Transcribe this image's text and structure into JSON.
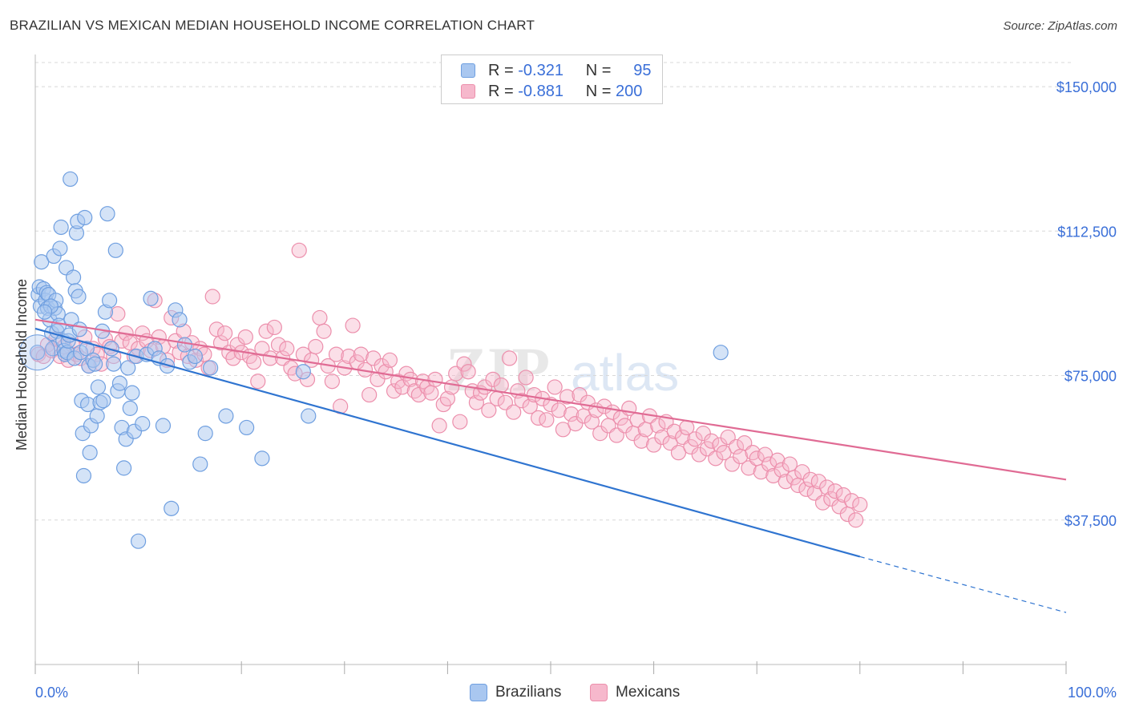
{
  "header": {
    "title": "BRAZILIAN VS MEXICAN MEDIAN HOUSEHOLD INCOME CORRELATION CHART",
    "source": "Source: ZipAtlas.com"
  },
  "legend_top": {
    "rows": [
      {
        "r_label": "R =",
        "r_value": "-0.321",
        "n_label": "N =",
        "n_value": "95"
      },
      {
        "r_label": "R =",
        "r_value": "-0.881",
        "n_label": "N =",
        "n_value": "200"
      }
    ]
  },
  "legend_bottom": {
    "items": [
      {
        "label": "Brazilians"
      },
      {
        "label": "Mexicans"
      }
    ]
  },
  "watermark": {
    "text1": "ZIP",
    "text2": "atlas"
  },
  "colors": {
    "blue_fill": "#a9c7f0",
    "blue_stroke": "#6f9fe0",
    "blue_line": "#2f74d0",
    "pink_fill": "#f6b8cc",
    "pink_stroke": "#ec8fac",
    "pink_line": "#e06b94",
    "axis_text": "#3a6fd8",
    "grid": "#d8d8d8"
  },
  "chart_data": {
    "type": "scatter",
    "title": "BRAZILIAN VS MEXICAN MEDIAN HOUSEHOLD INCOME CORRELATION CHART",
    "xlabel": "",
    "ylabel": "Median Household Income",
    "xlim": [
      0,
      100
    ],
    "ylim": [
      0,
      160000
    ],
    "x_tick_labels": [
      "0.0%",
      "100.0%"
    ],
    "y_ticks": [
      37500,
      75000,
      112500,
      150000
    ],
    "y_tick_labels": [
      "$37,500",
      "$75,000",
      "$112,500",
      "$150,000"
    ],
    "grid": "horizontal dashed",
    "legend_position": "top-center",
    "series": [
      {
        "name": "Brazilians",
        "r": -0.321,
        "n": 95,
        "trend": {
          "x0": 0,
          "y0": 87200,
          "x1": 80,
          "y1": 28000,
          "dashed_to_x": 100,
          "dashed_to_y": 13500
        },
        "points": [
          [
            0.2,
            81000
          ],
          [
            0.3,
            96000
          ],
          [
            0.4,
            98000
          ],
          [
            0.5,
            93000
          ],
          [
            0.6,
            104500
          ],
          [
            0.8,
            97500
          ],
          [
            1.0,
            94500
          ],
          [
            1.1,
            96500
          ],
          [
            1.2,
            92500
          ],
          [
            1.3,
            96000
          ],
          [
            1.4,
            89500
          ],
          [
            1.6,
            86000
          ],
          [
            1.7,
            82000
          ],
          [
            1.8,
            106000
          ],
          [
            1.9,
            92500
          ],
          [
            2.0,
            94500
          ],
          [
            2.1,
            86500
          ],
          [
            2.2,
            91000
          ],
          [
            2.3,
            88000
          ],
          [
            2.5,
            113500
          ],
          [
            2.7,
            84000
          ],
          [
            2.8,
            81500
          ],
          [
            2.9,
            80500
          ],
          [
            3.0,
            103000
          ],
          [
            3.1,
            81000
          ],
          [
            3.2,
            84000
          ],
          [
            3.3,
            85500
          ],
          [
            3.5,
            89500
          ],
          [
            3.7,
            100500
          ],
          [
            3.8,
            79500
          ],
          [
            3.9,
            97000
          ],
          [
            4.0,
            112000
          ],
          [
            4.1,
            115000
          ],
          [
            4.2,
            95500
          ],
          [
            4.3,
            87000
          ],
          [
            4.4,
            81000
          ],
          [
            4.5,
            68500
          ],
          [
            4.6,
            60000
          ],
          [
            4.7,
            49000
          ],
          [
            4.8,
            116000
          ],
          [
            5.0,
            82000
          ],
          [
            5.1,
            67500
          ],
          [
            5.2,
            77500
          ],
          [
            5.3,
            55000
          ],
          [
            5.4,
            62000
          ],
          [
            5.6,
            79000
          ],
          [
            5.8,
            78000
          ],
          [
            6.0,
            64500
          ],
          [
            6.1,
            72000
          ],
          [
            6.3,
            68000
          ],
          [
            6.5,
            86500
          ],
          [
            6.6,
            68500
          ],
          [
            6.8,
            91500
          ],
          [
            7.0,
            117000
          ],
          [
            7.2,
            94500
          ],
          [
            7.4,
            82000
          ],
          [
            7.6,
            78000
          ],
          [
            7.8,
            107500
          ],
          [
            8.0,
            71000
          ],
          [
            8.2,
            73000
          ],
          [
            8.4,
            61500
          ],
          [
            8.6,
            51000
          ],
          [
            8.8,
            58500
          ],
          [
            9.0,
            77000
          ],
          [
            9.2,
            66500
          ],
          [
            9.4,
            70500
          ],
          [
            9.6,
            60500
          ],
          [
            9.8,
            80000
          ],
          [
            10.0,
            32000
          ],
          [
            10.4,
            62500
          ],
          [
            10.8,
            80500
          ],
          [
            11.2,
            95000
          ],
          [
            11.6,
            82000
          ],
          [
            12.0,
            79500
          ],
          [
            12.4,
            62000
          ],
          [
            12.8,
            77500
          ],
          [
            13.2,
            40500
          ],
          [
            13.6,
            92000
          ],
          [
            14.0,
            89500
          ],
          [
            14.5,
            83000
          ],
          [
            15.0,
            78500
          ],
          [
            15.5,
            80000
          ],
          [
            16.0,
            52000
          ],
          [
            16.5,
            60000
          ],
          [
            17.0,
            77000
          ],
          [
            18.5,
            64500
          ],
          [
            20.5,
            61500
          ],
          [
            22.0,
            53500
          ],
          [
            26.0,
            76000
          ],
          [
            26.5,
            64500
          ],
          [
            3.4,
            126000
          ],
          [
            2.4,
            108000
          ],
          [
            1.5,
            93000
          ],
          [
            0.9,
            91500
          ],
          [
            66.5,
            81000
          ]
        ]
      },
      {
        "name": "Mexicans",
        "r": -0.881,
        "n": 200,
        "trend": {
          "x0": 0,
          "y0": 89500,
          "x1": 100,
          "y1": 48000
        },
        "points": [
          [
            0.3,
            80500
          ],
          [
            0.8,
            80000
          ],
          [
            1.2,
            83000
          ],
          [
            1.6,
            81500
          ],
          [
            2.0,
            84500
          ],
          [
            2.4,
            80000
          ],
          [
            2.8,
            82500
          ],
          [
            3.2,
            79000
          ],
          [
            3.6,
            83000
          ],
          [
            4.0,
            80500
          ],
          [
            4.4,
            79500
          ],
          [
            4.8,
            85000
          ],
          [
            5.2,
            77500
          ],
          [
            5.6,
            82000
          ],
          [
            6.0,
            80500
          ],
          [
            6.4,
            78000
          ],
          [
            6.8,
            84500
          ],
          [
            7.2,
            82500
          ],
          [
            7.6,
            80000
          ],
          [
            8.0,
            91000
          ],
          [
            8.4,
            84000
          ],
          [
            8.8,
            86000
          ],
          [
            9.2,
            83500
          ],
          [
            9.6,
            80000
          ],
          [
            10.0,
            82000
          ],
          [
            10.4,
            86000
          ],
          [
            10.8,
            84000
          ],
          [
            11.2,
            81500
          ],
          [
            11.6,
            94500
          ],
          [
            12.0,
            85000
          ],
          [
            12.4,
            82500
          ],
          [
            12.8,
            79000
          ],
          [
            13.2,
            90000
          ],
          [
            13.6,
            84000
          ],
          [
            14.0,
            81000
          ],
          [
            14.4,
            86500
          ],
          [
            14.8,
            80000
          ],
          [
            15.2,
            83500
          ],
          [
            15.6,
            79000
          ],
          [
            16.0,
            82000
          ],
          [
            16.4,
            80500
          ],
          [
            16.8,
            77000
          ],
          [
            17.2,
            95500
          ],
          [
            17.6,
            87000
          ],
          [
            18.0,
            83500
          ],
          [
            18.4,
            86000
          ],
          [
            18.8,
            81000
          ],
          [
            19.2,
            79500
          ],
          [
            19.6,
            83000
          ],
          [
            20.0,
            81000
          ],
          [
            20.4,
            85000
          ],
          [
            20.8,
            80000
          ],
          [
            21.2,
            78500
          ],
          [
            21.6,
            73500
          ],
          [
            22.0,
            82000
          ],
          [
            22.4,
            86500
          ],
          [
            22.8,
            79500
          ],
          [
            23.2,
            87500
          ],
          [
            23.6,
            83000
          ],
          [
            24.0,
            79500
          ],
          [
            24.4,
            82000
          ],
          [
            24.8,
            77000
          ],
          [
            25.2,
            75500
          ],
          [
            25.6,
            107500
          ],
          [
            26.0,
            80500
          ],
          [
            26.4,
            74000
          ],
          [
            26.8,
            79000
          ],
          [
            27.2,
            82500
          ],
          [
            27.6,
            90000
          ],
          [
            28.0,
            86500
          ],
          [
            28.4,
            77500
          ],
          [
            28.8,
            73500
          ],
          [
            29.2,
            80500
          ],
          [
            29.6,
            67000
          ],
          [
            30.0,
            77000
          ],
          [
            30.4,
            80000
          ],
          [
            30.8,
            88000
          ],
          [
            31.2,
            78500
          ],
          [
            31.6,
            80500
          ],
          [
            32.0,
            76500
          ],
          [
            32.4,
            70000
          ],
          [
            32.8,
            79500
          ],
          [
            33.2,
            74000
          ],
          [
            33.6,
            77500
          ],
          [
            34.0,
            76000
          ],
          [
            34.4,
            79000
          ],
          [
            34.8,
            71000
          ],
          [
            35.2,
            73500
          ],
          [
            35.6,
            72000
          ],
          [
            36.0,
            75500
          ],
          [
            36.4,
            74000
          ],
          [
            36.8,
            71000
          ],
          [
            37.2,
            70000
          ],
          [
            37.6,
            73500
          ],
          [
            38.0,
            72000
          ],
          [
            38.4,
            70500
          ],
          [
            38.8,
            74000
          ],
          [
            39.2,
            62000
          ],
          [
            39.6,
            67500
          ],
          [
            40.0,
            69000
          ],
          [
            40.4,
            72000
          ],
          [
            40.8,
            75500
          ],
          [
            41.2,
            63000
          ],
          [
            41.6,
            78000
          ],
          [
            42.0,
            76000
          ],
          [
            42.4,
            71000
          ],
          [
            42.8,
            68000
          ],
          [
            43.2,
            70500
          ],
          [
            43.6,
            72000
          ],
          [
            44.0,
            66000
          ],
          [
            44.4,
            74000
          ],
          [
            44.8,
            69000
          ],
          [
            45.2,
            72500
          ],
          [
            45.6,
            68000
          ],
          [
            46.0,
            79500
          ],
          [
            46.4,
            65500
          ],
          [
            46.8,
            71000
          ],
          [
            47.2,
            68500
          ],
          [
            47.6,
            74500
          ],
          [
            48.0,
            67000
          ],
          [
            48.4,
            70000
          ],
          [
            48.8,
            64000
          ],
          [
            49.2,
            69000
          ],
          [
            49.6,
            63500
          ],
          [
            50.0,
            67500
          ],
          [
            50.4,
            72000
          ],
          [
            50.8,
            66000
          ],
          [
            51.2,
            61000
          ],
          [
            51.6,
            69500
          ],
          [
            52.0,
            65000
          ],
          [
            52.4,
            62500
          ],
          [
            52.8,
            70000
          ],
          [
            53.2,
            64500
          ],
          [
            53.6,
            68000
          ],
          [
            54.0,
            63000
          ],
          [
            54.4,
            66000
          ],
          [
            54.8,
            60000
          ],
          [
            55.2,
            67000
          ],
          [
            55.6,
            62000
          ],
          [
            56.0,
            65500
          ],
          [
            56.4,
            59500
          ],
          [
            56.8,
            64000
          ],
          [
            57.2,
            62000
          ],
          [
            57.6,
            66500
          ],
          [
            58.0,
            60000
          ],
          [
            58.4,
            63500
          ],
          [
            58.8,
            58000
          ],
          [
            59.2,
            61000
          ],
          [
            59.6,
            64500
          ],
          [
            60.0,
            57000
          ],
          [
            60.4,
            62000
          ],
          [
            60.8,
            59000
          ],
          [
            61.2,
            63000
          ],
          [
            61.6,
            57500
          ],
          [
            62.0,
            60500
          ],
          [
            62.4,
            55000
          ],
          [
            62.8,
            59000
          ],
          [
            63.2,
            61500
          ],
          [
            63.6,
            56500
          ],
          [
            64.0,
            58500
          ],
          [
            64.4,
            54500
          ],
          [
            64.8,
            60000
          ],
          [
            65.2,
            56000
          ],
          [
            65.6,
            58000
          ],
          [
            66.0,
            53500
          ],
          [
            66.4,
            57000
          ],
          [
            66.8,
            55000
          ],
          [
            67.2,
            59000
          ],
          [
            67.6,
            52000
          ],
          [
            68.0,
            56500
          ],
          [
            68.4,
            54000
          ],
          [
            68.8,
            57500
          ],
          [
            69.2,
            51000
          ],
          [
            69.6,
            55000
          ],
          [
            70.0,
            53500
          ],
          [
            70.4,
            50000
          ],
          [
            70.8,
            54500
          ],
          [
            71.2,
            52000
          ],
          [
            71.6,
            49000
          ],
          [
            72.0,
            53000
          ],
          [
            72.4,
            50500
          ],
          [
            72.8,
            47500
          ],
          [
            73.2,
            52000
          ],
          [
            73.6,
            48500
          ],
          [
            74.0,
            46500
          ],
          [
            74.4,
            50000
          ],
          [
            74.8,
            45500
          ],
          [
            75.2,
            48000
          ],
          [
            75.6,
            44500
          ],
          [
            76.0,
            47500
          ],
          [
            76.4,
            42000
          ],
          [
            76.8,
            46000
          ],
          [
            77.2,
            43000
          ],
          [
            77.6,
            45000
          ],
          [
            78.0,
            41000
          ],
          [
            78.4,
            44000
          ],
          [
            78.8,
            39000
          ],
          [
            79.2,
            42500
          ],
          [
            79.6,
            37500
          ],
          [
            80.0,
            41500
          ]
        ]
      }
    ]
  }
}
